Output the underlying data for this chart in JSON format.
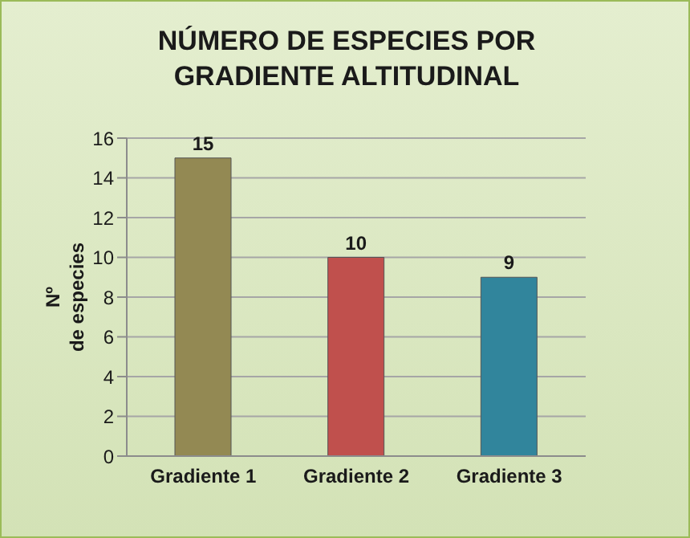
{
  "chart_data": {
    "type": "bar",
    "title": "NÚMERO DE ESPECIES POR GRADIENTE ALTITUDINAL",
    "ylabel": "Nº de especies",
    "categories": [
      "Gradiente 1",
      "Gradiente 2",
      "Gradiente 3"
    ],
    "values": [
      15,
      10,
      9
    ],
    "colors": [
      "#938953",
      "#c0504d",
      "#31859c"
    ],
    "ylim": [
      0,
      16
    ],
    "yticks": [
      0,
      2,
      4,
      6,
      8,
      10,
      12,
      14,
      16
    ],
    "grid": "y",
    "data_labels": true
  }
}
